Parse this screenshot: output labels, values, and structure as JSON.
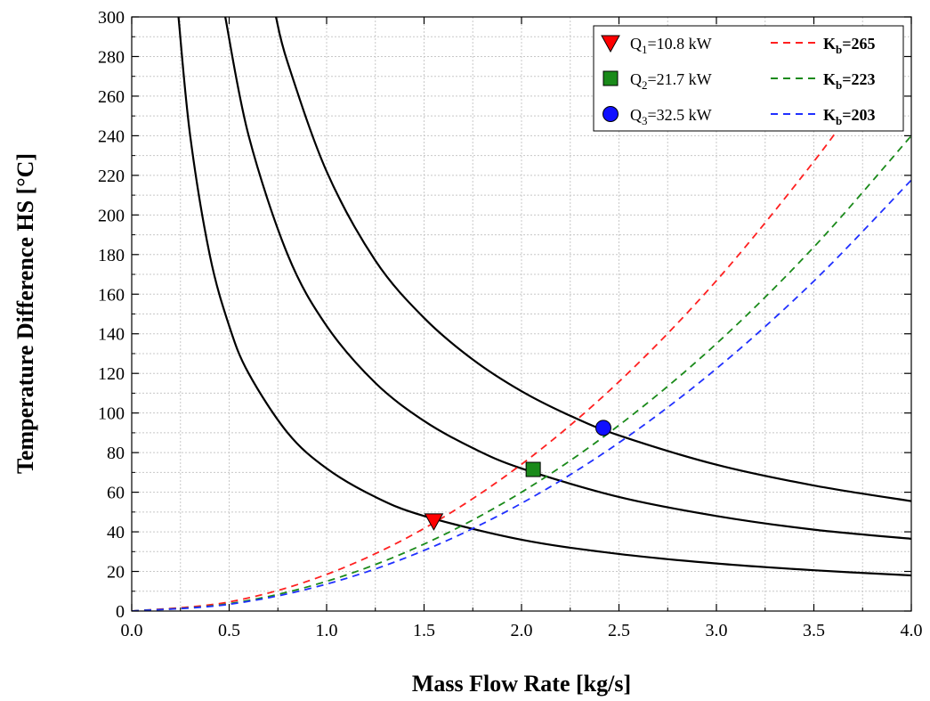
{
  "chart_data": {
    "type": "line",
    "xlabel": "Mass Flow Rate [kg/s]",
    "ylabel": "Temperature Difference HS [°C]",
    "xlim": [
      0,
      4.0
    ],
    "ylim": [
      0,
      300
    ],
    "x_ticks": [
      "0.0",
      "0.5",
      "1.0",
      "1.5",
      "2.0",
      "2.5",
      "3.0",
      "3.5",
      "4.0"
    ],
    "y_ticks": [
      "0",
      "20",
      "40",
      "60",
      "80",
      "100",
      "120",
      "140",
      "160",
      "180",
      "200",
      "220",
      "240",
      "260",
      "280",
      "300"
    ],
    "grid": true,
    "legend_position": "top-right",
    "heat_rate_curves": [
      {
        "label": "Q_1=10.8 kW",
        "color": "#000000",
        "x": [
          0.24,
          0.3,
          0.4,
          0.5,
          0.6,
          0.8,
          1.0,
          1.25,
          1.5,
          2.0,
          2.5,
          3.0,
          3.5,
          4.0
        ],
        "y": [
          300,
          240,
          180,
          144,
          120,
          90,
          72,
          57.6,
          48,
          36,
          28.8,
          24,
          20.6,
          18
        ]
      },
      {
        "label": "Q_2=21.7 kW",
        "color": "#000000",
        "x": [
          0.48,
          0.6,
          0.8,
          1.0,
          1.25,
          1.5,
          1.75,
          2.0,
          2.5,
          3.0,
          3.5,
          4.0
        ],
        "y": [
          300,
          240,
          180,
          144,
          115.2,
          96,
          82.3,
          72,
          57.6,
          48,
          41.1,
          36.5
        ]
      },
      {
        "label": "Q_3=32.5 kW",
        "color": "#000000",
        "x": [
          0.74,
          0.8,
          1.0,
          1.25,
          1.5,
          1.75,
          2.0,
          2.25,
          2.5,
          3.0,
          3.5,
          4.0
        ],
        "y": [
          300,
          277,
          222,
          177,
          148,
          127,
          111,
          98.6,
          88.7,
          73.9,
          63.4,
          55.5
        ]
      }
    ],
    "series": [
      {
        "name": "K_b=265",
        "label_main": "K",
        "label_sub": "b",
        "label_rest": "=265",
        "color": "#ff2020",
        "style": "dashed",
        "x": [
          0,
          0.5,
          1.0,
          1.5,
          2.0,
          2.5,
          3.0,
          3.5,
          3.8
        ],
        "y": [
          0,
          4.6,
          18.5,
          41.7,
          74.1,
          115.8,
          166.8,
          227,
          267.5
        ]
      },
      {
        "name": "K_b=223",
        "label_main": "K",
        "label_sub": "b",
        "label_rest": "=223",
        "color": "#1a8a1a",
        "style": "dashed",
        "x": [
          0,
          0.5,
          1.0,
          1.5,
          2.0,
          2.5,
          3.0,
          3.5,
          4.0
        ],
        "y": [
          0,
          3.7,
          15,
          33.8,
          60,
          93.8,
          135,
          183.8,
          240
        ]
      },
      {
        "name": "K_b=203",
        "label_main": "K",
        "label_sub": "b",
        "label_rest": "=203",
        "color": "#2030ff",
        "style": "dashed",
        "x": [
          0,
          0.5,
          1.0,
          1.5,
          2.0,
          2.5,
          3.0,
          3.5,
          4.0
        ],
        "y": [
          0,
          3.4,
          13.6,
          30.6,
          54.4,
          85,
          122.4,
          166.6,
          217.6
        ]
      }
    ],
    "markers": [
      {
        "label_main": "Q",
        "label_sub": "1",
        "label_rest": "=10.8 kW",
        "shape": "triangle-down",
        "color": "#ff0000",
        "x": 1.55,
        "y": 45.5
      },
      {
        "label_main": "Q",
        "label_sub": "2",
        "label_rest": "=21.7 kW",
        "shape": "square",
        "color": "#1a8a1a",
        "x": 2.06,
        "y": 71.5
      },
      {
        "label_main": "Q",
        "label_sub": "3",
        "label_rest": "=32.5 kW",
        "shape": "circle",
        "color": "#1010ff",
        "x": 2.42,
        "y": 92.5
      }
    ]
  }
}
